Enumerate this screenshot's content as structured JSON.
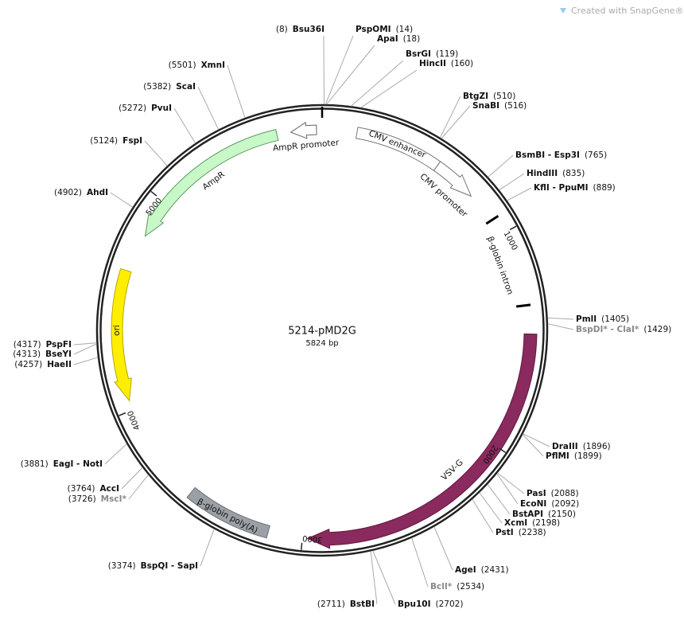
{
  "watermark": "Created with SnapGene®",
  "title": "5214-pMD2G",
  "size": "5824 bp",
  "ticks": [
    "1000",
    "2000",
    "3000",
    "4000",
    "5000"
  ],
  "features": [
    {
      "label": "AmpR promoter"
    },
    {
      "label": "AmpR"
    },
    {
      "label": "CMV enhancer"
    },
    {
      "label": "CMV promoter"
    },
    {
      "label": "β-globin intron"
    },
    {
      "label": "VSV-G"
    },
    {
      "label": "β-globin poly(A)"
    },
    {
      "label": "ori"
    }
  ],
  "sites": [
    {
      "name": "Bsu36I",
      "position": "(8)"
    },
    {
      "name": "PspOMI",
      "position": "(14)"
    },
    {
      "name": "ApaI",
      "position": "(18)"
    },
    {
      "name": "BsrGI",
      "position": "(119)"
    },
    {
      "name": "HincII",
      "position": "(160)"
    },
    {
      "name": "BtgZI",
      "position": "(510)"
    },
    {
      "name": "SnaBI",
      "position": "(516)"
    },
    {
      "name": "BsmBI - Esp3I",
      "position": "(765)"
    },
    {
      "name": "HindIII",
      "position": "(835)"
    },
    {
      "name": "KflI - PpuMI",
      "position": "(889)"
    },
    {
      "name": "PmlI",
      "position": "(1405)"
    },
    {
      "name": "BspDI* - ClaI*",
      "position": "(1429)"
    },
    {
      "name": "DraIII",
      "position": "(1896)"
    },
    {
      "name": "PflMI",
      "position": "(1899)"
    },
    {
      "name": "PasI",
      "position": "(2088)"
    },
    {
      "name": "EcoNI",
      "position": "(2092)"
    },
    {
      "name": "BstAPI",
      "position": "(2150)"
    },
    {
      "name": "XcmI",
      "position": "(2198)"
    },
    {
      "name": "PstI",
      "position": "(2238)"
    },
    {
      "name": "AgeI",
      "position": "(2431)"
    },
    {
      "name": "BclI*",
      "position": "(2534)"
    },
    {
      "name": "Bpu10I",
      "position": "(2702)"
    },
    {
      "name": "BstBI",
      "position": "(2711)"
    },
    {
      "name": "BspQI - SapI",
      "position": "(3374)"
    },
    {
      "name": "MscI*",
      "position": "(3726)"
    },
    {
      "name": "AccI",
      "position": "(3764)"
    },
    {
      "name": "EagI - NotI",
      "position": "(3881)"
    },
    {
      "name": "HaeII",
      "position": "(4257)"
    },
    {
      "name": "BseYI",
      "position": "(4313)"
    },
    {
      "name": "PspFI",
      "position": "(4317)"
    },
    {
      "name": "AhdI",
      "position": "(4902)"
    },
    {
      "name": "FspI",
      "position": "(5124)"
    },
    {
      "name": "PvuI",
      "position": "(5272)"
    },
    {
      "name": "ScaI",
      "position": "(5382)"
    },
    {
      "name": "XmnI",
      "position": "(5501)"
    }
  ]
}
